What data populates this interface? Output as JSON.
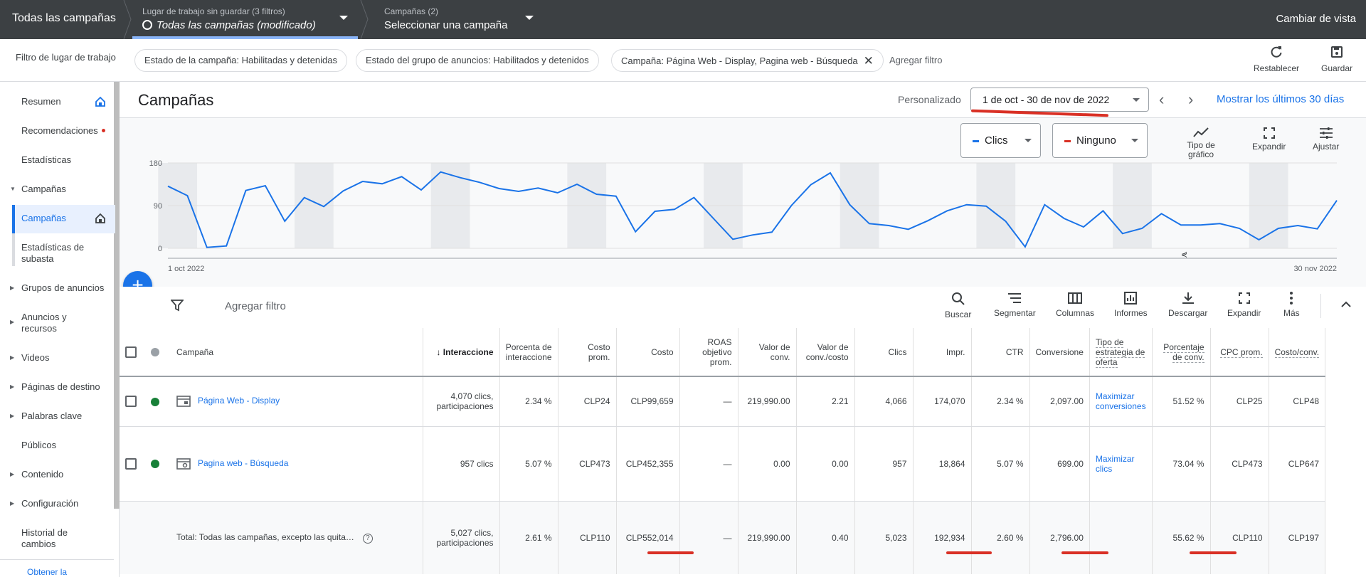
{
  "topbar": {
    "home": "Todas las campañas",
    "workspace_small": "Lugar de trabajo sin guardar (3 filtros)",
    "workspace_main": "Todas las campañas (modificado)",
    "campaigns_small": "Campañas (2)",
    "campaigns_main": "Seleccionar una campaña",
    "switch_view": "Cambiar de vista"
  },
  "filterbar": {
    "label": "Filtro de lugar de trabajo",
    "chips": [
      "Estado de la campaña: Habilitadas y detenidas",
      "Estado del grupo de anuncios: Habilitados y detenidos",
      "Campaña: Página Web - Display, Pagina web - Búsqueda"
    ],
    "add_filter": "Agregar filtro",
    "reset": "Restablecer",
    "save": "Guardar"
  },
  "sidebar": {
    "items": [
      "Resumen",
      "Recomendaciones",
      "Estadísticas",
      "Campañas",
      "Campañas",
      "Estadísticas de subasta",
      "Grupos de anuncios",
      "Anuncios y recursos",
      "Videos",
      "Páginas de destino",
      "Palabras clave",
      "Públicos",
      "Contenido",
      "Configuración",
      "Historial de cambios",
      "Obtener la"
    ]
  },
  "header": {
    "title": "Campañas",
    "custom": "Personalizado",
    "date_range": "1 de oct - 30 de nov de 2022",
    "last30": "Mostrar los últimos 30 días"
  },
  "chart_controls": {
    "metric1": "Clics",
    "metric1_color": "#1a73e8",
    "metric2": "Ninguno",
    "metric2_color": "#d93025",
    "chart_type": "Tipo de gráfico",
    "expand": "Expandir",
    "adjust": "Ajustar"
  },
  "chart_data": {
    "type": "line",
    "series": [
      {
        "name": "Clics",
        "color": "#1a73e8",
        "values": [
          131,
          111,
          2,
          5,
          122,
          132,
          57,
          107,
          88,
          121,
          141,
          136,
          151,
          123,
          161,
          149,
          139,
          126,
          120,
          127,
          117,
          135,
          114,
          110,
          35,
          78,
          82,
          107,
          63,
          19,
          28,
          34,
          90,
          134,
          159,
          92,
          52,
          48,
          40,
          58,
          79,
          92,
          89,
          57,
          3,
          92,
          63,
          45,
          79,
          31,
          42,
          73,
          49,
          49,
          52,
          42,
          18,
          42,
          48,
          41,
          101
        ]
      }
    ],
    "x_start_label": "1 oct 2022",
    "x_end_label": "30 nov 2022",
    "yticks": [
      "180",
      "90",
      "0"
    ],
    "ylim": [
      0,
      180
    ],
    "weekend_bands": true
  },
  "table_tools": {
    "add_filter": "Agregar filtro",
    "search": "Buscar",
    "segment": "Segmentar",
    "columns": "Columnas",
    "reports": "Informes",
    "download": "Descargar",
    "expand": "Expandir",
    "more": "Más"
  },
  "table": {
    "headers": {
      "campaign": "Campaña",
      "interactions": "Interaccione",
      "interaction_rate": "Porcenta de interaccione",
      "avg_cost": "Costo prom.",
      "cost": "Costo",
      "roas": "ROAS objetivo prom.",
      "conv_value": "Valor de conv.",
      "conv_value_cost": "Valor de conv./costo",
      "clicks": "Clics",
      "impr": "Impr.",
      "ctr": "CTR",
      "conversions": "Conversione",
      "bid_strategy": "Tipo de estrategia de oferta",
      "conv_rate": "Porcentaje de conv.",
      "avg_cpc": "CPC prom.",
      "cost_conv": "Costo/conv."
    },
    "rows": [
      {
        "name": "Página Web - Display",
        "status_color": "#188038",
        "interactions": "4,070 clics, participaciones",
        "interaction_rate": "2.34 %",
        "avg_cost": "CLP24",
        "cost": "CLP99,659",
        "roas": "—",
        "conv_value": "219,990.00",
        "conv_value_cost": "2.21",
        "clicks": "4,066",
        "impr": "174,070",
        "ctr": "2.34 %",
        "conversions": "2,097.00",
        "bid_strategy": "Maximizar conversiones",
        "conv_rate": "51.52 %",
        "avg_cpc": "CLP25",
        "cost_conv": "CLP48"
      },
      {
        "name": "Pagina web - Búsqueda",
        "status_color": "#188038",
        "interactions": "957 clics",
        "interaction_rate": "5.07 %",
        "avg_cost": "CLP473",
        "cost": "CLP452,355",
        "roas": "—",
        "conv_value": "0.00",
        "conv_value_cost": "0.00",
        "clicks": "957",
        "impr": "18,864",
        "ctr": "5.07 %",
        "conversions": "699.00",
        "bid_strategy": "Maximizar clics",
        "conv_rate": "73.04 %",
        "avg_cpc": "CLP473",
        "cost_conv": "CLP647"
      }
    ],
    "total": {
      "name": "Total: Todas las campañas, excepto las quita…",
      "interactions": "5,027 clics, participaciones",
      "interaction_rate": "2.61 %",
      "avg_cost": "CLP110",
      "cost": "CLP552,014",
      "roas": "—",
      "conv_value": "219,990.00",
      "conv_value_cost": "0.40",
      "clicks": "5,023",
      "impr": "192,934",
      "ctr": "2.60 %",
      "conversions": "2,796.00",
      "bid_strategy": "",
      "conv_rate": "55.62 %",
      "avg_cpc": "CLP110",
      "cost_conv": "CLP197"
    }
  }
}
